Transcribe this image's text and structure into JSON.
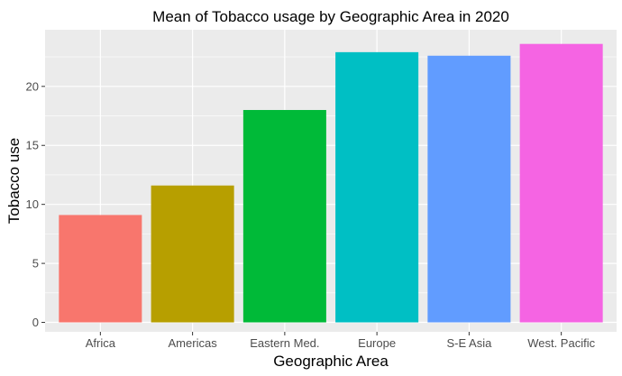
{
  "chart_data": {
    "type": "bar",
    "title": "Mean of Tobacco usage by Geographic Area in 2020",
    "xlabel": "Geographic Area",
    "ylabel": "Tobacco use",
    "categories": [
      "Africa",
      "Americas",
      "Eastern Med.",
      "Europe",
      "S-E Asia",
      "West. Pacific"
    ],
    "values": [
      9.1,
      11.6,
      18.0,
      22.9,
      22.6,
      23.6
    ],
    "colors": [
      "#F8766D",
      "#B79F00",
      "#00BA38",
      "#00BFC4",
      "#619CFF",
      "#F564E3"
    ],
    "ylim": [
      -0.8,
      24.8
    ],
    "yticks": [
      0,
      5,
      10,
      15,
      20
    ],
    "ytick_labels": [
      "0",
      "5",
      "10",
      "15",
      "20"
    ],
    "grid": true,
    "legend": "none",
    "panel_background": "#EBEBEB",
    "grid_color": "#FFFFFF"
  }
}
